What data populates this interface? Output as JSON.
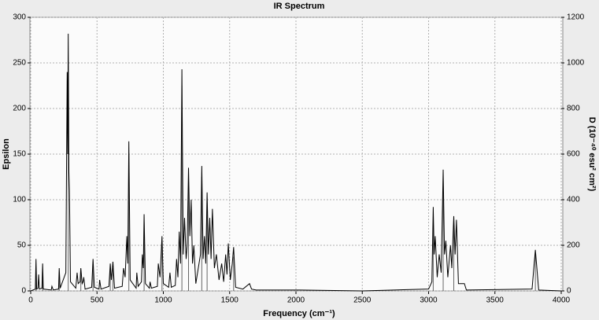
{
  "chart_data": {
    "type": "spectrum",
    "title": "IR Spectrum",
    "xlabel": "Frequency (cm⁻¹)",
    "ylabel": "Epsilon",
    "y2label": "D (10⁻⁴⁰ esu² cm²)",
    "xlim": [
      0,
      4000
    ],
    "xticks": [
      0,
      500,
      1000,
      1500,
      2000,
      2500,
      3000,
      3500,
      4000
    ],
    "ylim": [
      0,
      300
    ],
    "yticks": [
      0,
      50,
      100,
      150,
      200,
      250,
      300
    ],
    "y2lim": [
      0,
      1200
    ],
    "y2ticks": [
      0,
      200,
      400,
      600,
      800,
      1000,
      1200
    ],
    "grid": true,
    "color": "#000000",
    "x": [
      0,
      35,
      40,
      45,
      55,
      60,
      65,
      85,
      90,
      95,
      155,
      160,
      170,
      210,
      215,
      222,
      265,
      275,
      279,
      283,
      288,
      292,
      300,
      340,
      350,
      358,
      372,
      378,
      388,
      395,
      400,
      410,
      460,
      470,
      480,
      515,
      520,
      530,
      590,
      600,
      608,
      620,
      632,
      690,
      700,
      712,
      725,
      732,
      740,
      750,
      795,
      800,
      810,
      835,
      842,
      849,
      855,
      865,
      895,
      900,
      910,
      955,
      962,
      975,
      990,
      1000,
      1040,
      1050,
      1060,
      1090,
      1100,
      1110,
      1120,
      1130,
      1140,
      1150,
      1160,
      1172,
      1180,
      1190,
      1200,
      1210,
      1220,
      1230,
      1245,
      1280,
      1290,
      1300,
      1310,
      1320,
      1330,
      1340,
      1350,
      1360,
      1370,
      1385,
      1400,
      1420,
      1440,
      1455,
      1470,
      1480,
      1490,
      1505,
      1520,
      1530,
      1545,
      1600,
      1650,
      1665,
      1700,
      2000,
      2500,
      3000,
      3025,
      3035,
      3042,
      3050,
      3065,
      3080,
      3095,
      3110,
      3120,
      3130,
      3145,
      3165,
      3175,
      3190,
      3200,
      3210,
      3225,
      3270,
      3285,
      3780,
      3805,
      3830,
      4000
    ],
    "values": [
      0,
      2,
      35,
      2,
      3,
      18,
      2,
      3,
      30,
      2,
      1,
      5,
      1,
      2,
      25,
      3,
      20,
      240,
      150,
      282,
      130,
      110,
      10,
      3,
      20,
      8,
      10,
      25,
      8,
      10,
      15,
      2,
      4,
      35,
      4,
      2,
      12,
      2,
      5,
      30,
      12,
      32,
      3,
      5,
      25,
      15,
      60,
      30,
      164,
      12,
      3,
      20,
      5,
      10,
      40,
      25,
      84,
      8,
      3,
      10,
      3,
      5,
      30,
      15,
      60,
      8,
      4,
      20,
      4,
      6,
      35,
      15,
      65,
      30,
      243,
      40,
      80,
      35,
      50,
      135,
      60,
      100,
      30,
      50,
      8,
      40,
      137,
      35,
      60,
      30,
      108,
      40,
      80,
      35,
      90,
      25,
      40,
      12,
      30,
      10,
      40,
      18,
      52,
      12,
      30,
      48,
      4,
      2,
      8,
      2,
      1,
      1,
      0,
      2,
      10,
      92,
      40,
      60,
      15,
      40,
      20,
      133,
      40,
      55,
      15,
      50,
      25,
      82,
      40,
      78,
      8,
      8,
      1,
      2,
      45,
      1,
      0
    ],
    "sticks": {
      "axis": "y2",
      "x": [
        40,
        90,
        215,
        283,
        378,
        470,
        600,
        620,
        740,
        855,
        990,
        1140,
        1190,
        1290,
        1330,
        1530,
        3035,
        3110,
        3190,
        3805
      ],
      "values": [
        60,
        50,
        80,
        960,
        80,
        110,
        90,
        100,
        600,
        300,
        200,
        900,
        480,
        500,
        380,
        150,
        300,
        480,
        280,
        170
      ]
    }
  }
}
